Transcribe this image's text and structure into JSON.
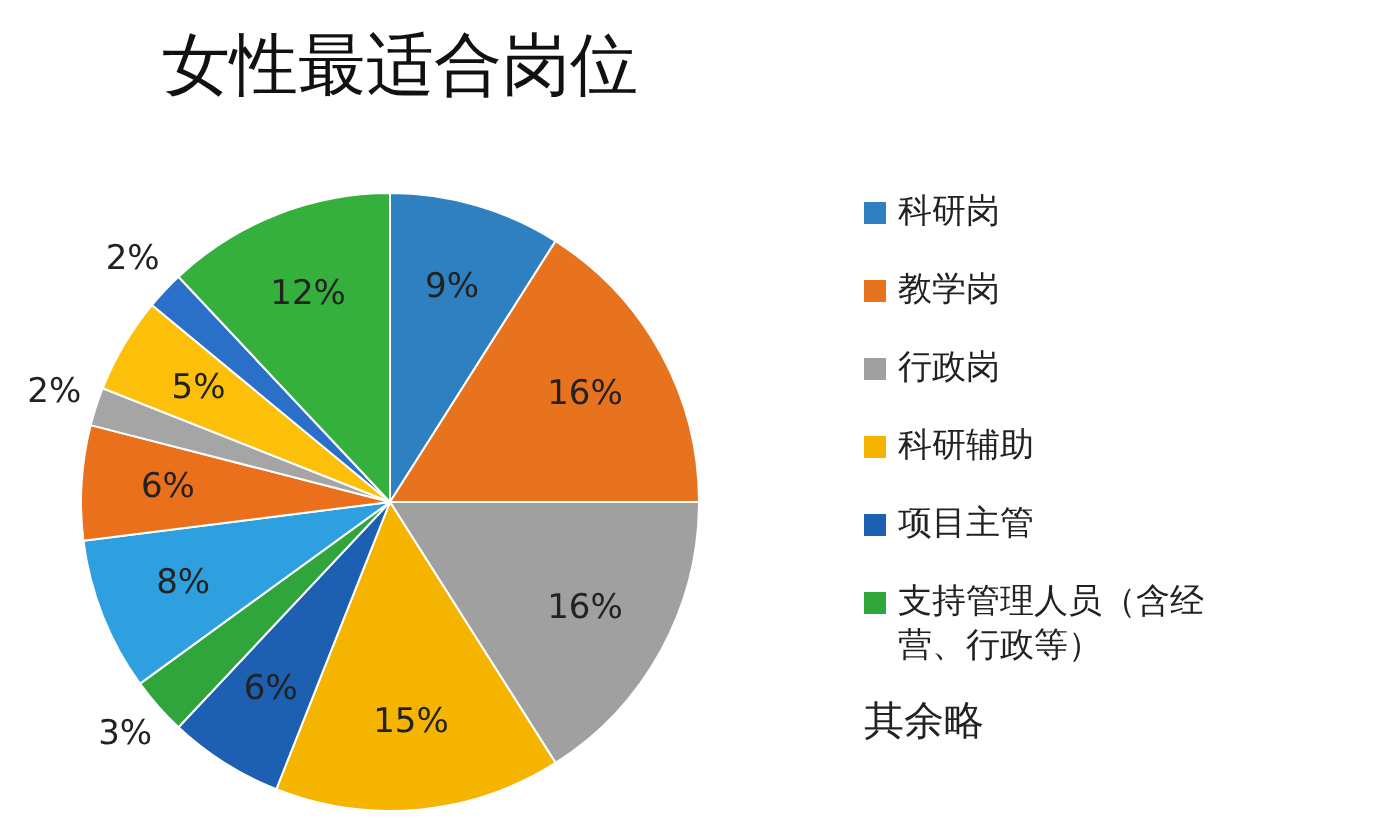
{
  "chart_data": {
    "type": "pie",
    "title": "女性最适合岗位",
    "categories": [
      "科研岗",
      "教学岗",
      "行政岗",
      "科研辅助",
      "项目主管",
      "支持管理人员（含经营、行政等）",
      null,
      null,
      null,
      null,
      null,
      null
    ],
    "values": [
      9,
      16,
      16,
      15,
      6,
      3,
      8,
      6,
      2,
      5,
      2,
      12
    ],
    "colors": [
      "#2e80c0",
      "#e8731e",
      "#a0a0a0",
      "#f5b400",
      "#1d5fb0",
      "#2fa53c",
      "#2ea0e0",
      "#ea701c",
      "#a5a5a5",
      "#fcc00a",
      "#2a70c8",
      "#35b03c"
    ],
    "value_labels": [
      "9%",
      "16%",
      "16%",
      "15%",
      "6%",
      "3%",
      "8%",
      "6%",
      "2%",
      "5%",
      "2%",
      "12%"
    ],
    "legend": "right",
    "annotations": [
      "其余略"
    ]
  }
}
